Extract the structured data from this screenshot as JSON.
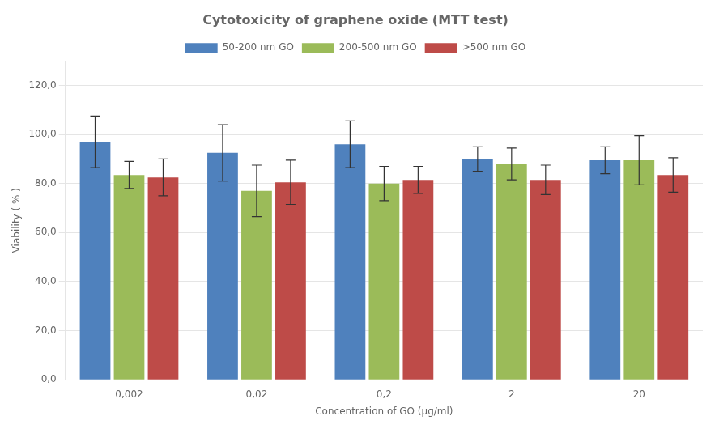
{
  "chart_data": {
    "type": "bar",
    "title": "Cytotoxicity of graphene oxide (MTT test)",
    "xlabel": "Concentration of GO (μg/ml)",
    "ylabel": "Viability ( % )",
    "categories": [
      "0,002",
      "0,02",
      "0,2",
      "2",
      "20"
    ],
    "series": [
      {
        "name": "50-200 nm GO",
        "color": "#4F81BD",
        "values": [
          97.0,
          92.5,
          96.0,
          90.0,
          89.5
        ],
        "errors": [
          10.5,
          11.5,
          9.5,
          5.0,
          5.5
        ]
      },
      {
        "name": "200-500 nm GO",
        "color": "#9BBB59",
        "values": [
          83.5,
          77.0,
          80.0,
          88.0,
          89.5
        ],
        "errors": [
          5.5,
          10.5,
          7.0,
          6.5,
          10.0
        ]
      },
      {
        "name": ">500 nm GO",
        "color": "#BE4B48",
        "values": [
          82.5,
          80.5,
          81.5,
          81.5,
          83.5
        ],
        "errors": [
          7.5,
          9.0,
          5.5,
          6.0,
          7.0
        ]
      }
    ],
    "ylim": [
      0,
      130
    ],
    "yticks": [
      {
        "value": 0,
        "label": "0,0"
      },
      {
        "value": 20,
        "label": "20,0"
      },
      {
        "value": 40,
        "label": "40,0"
      },
      {
        "value": 60,
        "label": "60,0"
      },
      {
        "value": 80,
        "label": "80,0"
      },
      {
        "value": 100,
        "label": "100,0"
      },
      {
        "value": 120,
        "label": "120,0"
      }
    ],
    "grid": true,
    "legend": "top"
  }
}
